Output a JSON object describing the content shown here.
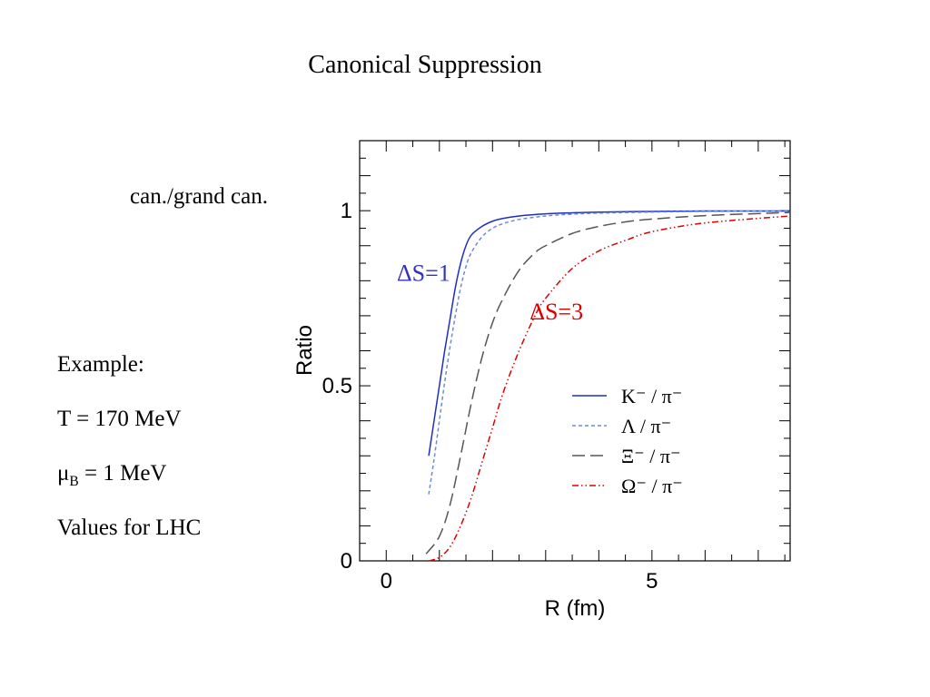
{
  "slide": {
    "title": "Canonical Suppression",
    "axis_note": "can./grand can.",
    "notes": {
      "example": "Example:",
      "temperature": "T = 170 MeV",
      "mu_symbol": "μ",
      "mu_sub": "B",
      "mu_value": " = 1 MeV",
      "values": "Values for LHC"
    }
  },
  "chart_data": {
    "type": "line",
    "xlabel": "R (fm)",
    "ylabel": "Ratio",
    "xlim": [
      -0.5,
      7.6
    ],
    "ylim": [
      0,
      1.2
    ],
    "xticks": [
      0,
      5
    ],
    "xtick_labels": [
      "0",
      "5"
    ],
    "yticks": [
      0,
      0.5,
      1
    ],
    "ytick_labels": [
      "0",
      "0.5",
      "1"
    ],
    "grid": false,
    "legend_position": "bottom-right",
    "annotations": [
      {
        "text": "ΔS=1",
        "x": 0.2,
        "y": 0.8,
        "color": "#3333bb"
      },
      {
        "text": "ΔS=3",
        "x": 2.7,
        "y": 0.69,
        "color": "#dd0000"
      }
    ],
    "series": [
      {
        "name": "K⁻ / π⁻",
        "color": "#1f2fbf",
        "dash": "solid",
        "x": [
          0.8,
          0.9,
          1.0,
          1.1,
          1.2,
          1.3,
          1.4,
          1.5,
          1.6,
          1.8,
          2.0,
          2.2,
          2.5,
          3.0,
          3.5,
          4.0,
          5.0,
          6.0,
          7.6
        ],
        "y": [
          0.3,
          0.4,
          0.5,
          0.6,
          0.69,
          0.78,
          0.85,
          0.9,
          0.93,
          0.955,
          0.97,
          0.978,
          0.985,
          0.991,
          0.994,
          0.996,
          0.998,
          0.999,
          0.999
        ]
      },
      {
        "name": "Λ / π⁻",
        "color": "#6a8cd8",
        "dash": "short",
        "x": [
          0.8,
          0.9,
          1.0,
          1.1,
          1.2,
          1.3,
          1.4,
          1.5,
          1.6,
          1.8,
          2.0,
          2.2,
          2.5,
          3.0,
          3.5,
          4.0,
          5.0,
          6.0,
          7.6
        ],
        "y": [
          0.19,
          0.29,
          0.4,
          0.51,
          0.61,
          0.7,
          0.78,
          0.84,
          0.88,
          0.925,
          0.95,
          0.963,
          0.975,
          0.985,
          0.99,
          0.993,
          0.996,
          0.998,
          0.999
        ]
      },
      {
        "name": "Ξ⁻ / π⁻",
        "color": "#555555",
        "dash": "long",
        "x": [
          0.75,
          1.0,
          1.2,
          1.4,
          1.6,
          1.8,
          2.0,
          2.2,
          2.5,
          2.8,
          3.0,
          3.5,
          4.0,
          4.5,
          5.0,
          6.0,
          7.6
        ],
        "y": [
          0.02,
          0.07,
          0.16,
          0.3,
          0.45,
          0.58,
          0.68,
          0.75,
          0.83,
          0.88,
          0.9,
          0.935,
          0.955,
          0.968,
          0.976,
          0.986,
          0.995
        ]
      },
      {
        "name": "Ω⁻ / π⁻",
        "color": "#dd0000",
        "dash": "dashdot",
        "x": [
          0.8,
          1.0,
          1.2,
          1.4,
          1.6,
          1.8,
          2.0,
          2.2,
          2.5,
          2.8,
          3.0,
          3.5,
          4.0,
          4.5,
          5.0,
          6.0,
          7.6
        ],
        "y": [
          0.0,
          0.01,
          0.04,
          0.1,
          0.18,
          0.28,
          0.38,
          0.48,
          0.6,
          0.7,
          0.75,
          0.835,
          0.885,
          0.915,
          0.94,
          0.965,
          0.985
        ]
      }
    ]
  }
}
